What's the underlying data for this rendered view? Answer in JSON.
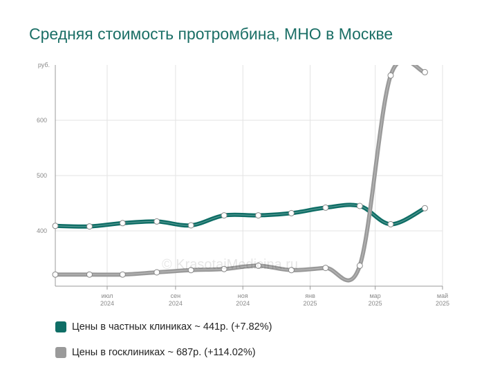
{
  "chart_data": {
    "type": "line",
    "title": "Средняя стоимость протромбина, МНО в Москве",
    "y_unit": "руб.",
    "yticks": [
      400,
      500,
      600
    ],
    "ylim": [
      300,
      700
    ],
    "xlim": [
      "2024-05-15",
      "2025-05-01"
    ],
    "xticks": [
      {
        "date": "2024-07-01",
        "month": "июл",
        "year": "2024"
      },
      {
        "date": "2024-09-01",
        "month": "сен",
        "year": "2024"
      },
      {
        "date": "2024-11-01",
        "month": "ноя",
        "year": "2024"
      },
      {
        "date": "2025-01-01",
        "month": "янв",
        "year": "2025"
      },
      {
        "date": "2025-03-01",
        "month": "мар",
        "year": "2025"
      },
      {
        "date": "2025-05-01",
        "month": "май",
        "year": "2025"
      }
    ],
    "grid": true,
    "legend_position": "bottom",
    "series": [
      {
        "name": "Цены в частных клиниках",
        "legend_label": "Цены в частных клиниках ~ 441р. (+7.82%)",
        "color": "#0f6e66",
        "points": [
          {
            "x": "2024-05-15",
            "y": 409
          },
          {
            "x": "2024-06-15",
            "y": 408
          },
          {
            "x": "2024-07-15",
            "y": 414
          },
          {
            "x": "2024-08-15",
            "y": 417
          },
          {
            "x": "2024-09-15",
            "y": 410
          },
          {
            "x": "2024-10-15",
            "y": 428
          },
          {
            "x": "2024-11-15",
            "y": 428
          },
          {
            "x": "2024-12-15",
            "y": 432
          },
          {
            "x": "2025-01-15",
            "y": 442
          },
          {
            "x": "2025-02-15",
            "y": 445
          },
          {
            "x": "2025-03-15",
            "y": 412
          },
          {
            "x": "2025-04-15",
            "y": 441
          }
        ]
      },
      {
        "name": "Цены в госклиниках",
        "legend_label": "Цены в госклиниках ~ 687р. (+114.02%)",
        "color": "#9a9a9a",
        "points": [
          {
            "x": "2024-05-15",
            "y": 321
          },
          {
            "x": "2024-06-15",
            "y": 321
          },
          {
            "x": "2024-07-15",
            "y": 321
          },
          {
            "x": "2024-08-15",
            "y": 325
          },
          {
            "x": "2024-09-15",
            "y": 329
          },
          {
            "x": "2024-10-15",
            "y": 331
          },
          {
            "x": "2024-11-15",
            "y": 337
          },
          {
            "x": "2024-12-15",
            "y": 329
          },
          {
            "x": "2025-01-15",
            "y": 333
          },
          {
            "x": "2025-02-15",
            "y": 337
          },
          {
            "x": "2025-03-15",
            "y": 681
          },
          {
            "x": "2025-04-15",
            "y": 687
          }
        ]
      }
    ]
  },
  "watermark": "© KrasotaiMedicina.ru"
}
